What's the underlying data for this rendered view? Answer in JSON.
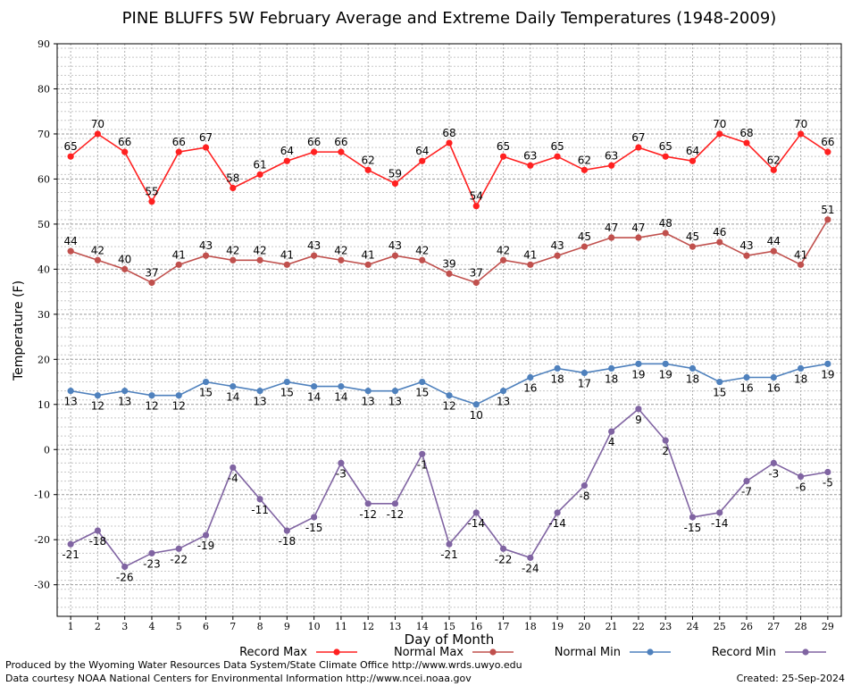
{
  "chart_data": {
    "type": "line",
    "title": "PINE BLUFFS 5W February Average and Extreme Daily Temperatures (1948-2009)",
    "xlabel": "Day of Month",
    "ylabel": "Temperature (F)",
    "ylim": [
      -37,
      90
    ],
    "yticks": [
      90,
      80,
      70,
      60,
      50,
      40,
      30,
      20,
      10,
      0,
      -10,
      -20,
      -30
    ],
    "x": [
      1,
      2,
      3,
      4,
      5,
      6,
      7,
      8,
      9,
      10,
      11,
      12,
      13,
      14,
      15,
      16,
      17,
      18,
      19,
      20,
      21,
      22,
      23,
      24,
      25,
      26,
      27,
      28,
      29
    ],
    "grid": true,
    "legend_position": "bottom",
    "series": [
      {
        "name": "Record Max",
        "color": "#ff2020",
        "label_pos": "above",
        "values": [
          65,
          70,
          66,
          55,
          66,
          67,
          58,
          61,
          64,
          66,
          66,
          62,
          59,
          64,
          68,
          54,
          65,
          63,
          65,
          62,
          63,
          67,
          65,
          64,
          70,
          68,
          62,
          70,
          66
        ]
      },
      {
        "name": "Normal Max",
        "color": "#c0504d",
        "label_pos": "above",
        "values": [
          44,
          42,
          40,
          37,
          41,
          43,
          42,
          42,
          41,
          43,
          42,
          41,
          43,
          42,
          39,
          37,
          42,
          41,
          43,
          45,
          47,
          47,
          48,
          45,
          46,
          43,
          44,
          41,
          51
        ]
      },
      {
        "name": "Normal Min",
        "color": "#4f81bd",
        "label_pos": "below",
        "values": [
          13,
          12,
          13,
          12,
          12,
          15,
          14,
          13,
          15,
          14,
          14,
          13,
          13,
          15,
          12,
          10,
          13,
          16,
          18,
          17,
          18,
          19,
          19,
          18,
          15,
          16,
          16,
          18,
          19
        ]
      },
      {
        "name": "Record Min",
        "color": "#8064a2",
        "label_pos": "below",
        "values": [
          -21,
          -18,
          -26,
          -23,
          -22,
          -19,
          -4,
          -11,
          -18,
          -15,
          -3,
          -12,
          -12,
          -1,
          -21,
          -14,
          -22,
          -24,
          -14,
          -8,
          4,
          9,
          2,
          -15,
          -14,
          -7,
          -3,
          -6,
          -5
        ]
      }
    ]
  },
  "footer": {
    "left_line1": "Produced by the Wyoming Water Resources Data System/State Climate Office http://www.wrds.uwyo.edu",
    "left_line2": "Data courtesy NOAA National Centers for Environmental Information http://www.ncei.noaa.gov",
    "created": "Created: 25-Sep-2024"
  }
}
